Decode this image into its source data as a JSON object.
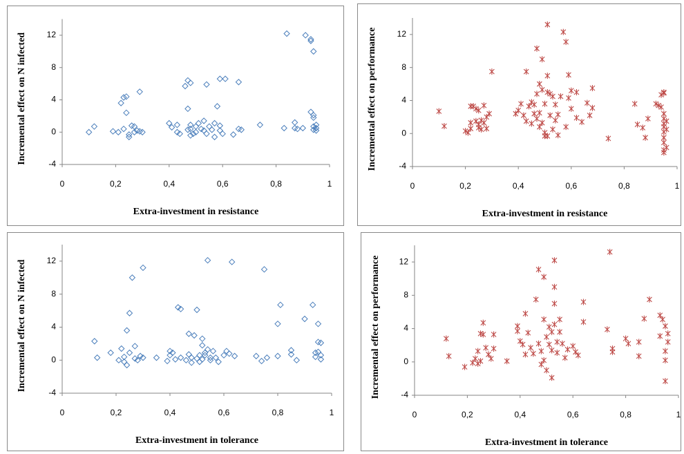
{
  "chart_data": [
    {
      "type": "scatter",
      "xlabel": "Extra-investment in resistance",
      "ylabel": "Incremental effect on N infected",
      "color": "#4a7ebb",
      "marker": "diamond",
      "xlim": [
        0,
        1
      ],
      "ylim": [
        -4,
        14
      ],
      "xticks": [
        0,
        {
          "value": 0.2,
          "label": "0,2"
        },
        {
          "value": 0.4,
          "label": "0,4"
        },
        {
          "value": 0.6,
          "label": "0,6"
        },
        {
          "value": 0.8,
          "label": "0,8"
        },
        1
      ],
      "yticks": [
        -4,
        0,
        4,
        8,
        12
      ],
      "x": [
        0.1,
        0.12,
        0.19,
        0.21,
        0.22,
        0.23,
        0.24,
        0.24,
        0.23,
        0.26,
        0.25,
        0.25,
        0.27,
        0.28,
        0.29,
        0.29,
        0.27,
        0.3,
        0.4,
        0.41,
        0.43,
        0.43,
        0.44,
        0.46,
        0.47,
        0.47,
        0.47,
        0.48,
        0.48,
        0.48,
        0.48,
        0.49,
        0.5,
        0.5,
        0.51,
        0.52,
        0.53,
        0.53,
        0.54,
        0.54,
        0.55,
        0.56,
        0.57,
        0.57,
        0.59,
        0.58,
        0.59,
        0.6,
        0.59,
        0.61,
        0.66,
        0.64,
        0.66,
        0.67,
        0.74,
        0.83,
        0.84,
        0.91,
        0.93,
        0.93,
        0.94,
        0.87,
        0.87,
        0.88,
        0.9,
        0.93,
        0.94,
        0.94,
        0.94,
        0.94,
        0.95,
        0.95,
        0.95
      ],
      "values": [
        0,
        0.7,
        0.1,
        0,
        3.6,
        4.3,
        2.4,
        4.4,
        0.4,
        0.8,
        -0.3,
        -0.6,
        0.7,
        0.2,
        0.1,
        5.0,
        0,
        0,
        1.1,
        0.6,
        0,
        0.9,
        -0.2,
        5.7,
        0.3,
        2.9,
        6.4,
        6.1,
        0.9,
        0.4,
        -0.4,
        -0.2,
        0.7,
        0,
        1.1,
        0.4,
        0.2,
        1.4,
        -0.2,
        5.9,
        0.7,
        0.3,
        -0.6,
        1.1,
        0.2,
        3.2,
        0.8,
        -0.2,
        6.6,
        6.6,
        6.2,
        -0.3,
        0.4,
        0.3,
        0.9,
        0.5,
        12.2,
        12.0,
        11.5,
        11.3,
        10.0,
        0.5,
        1.2,
        0.4,
        0.5,
        2.5,
        2.1,
        1.8,
        0.7,
        0.3,
        0.9,
        0.2,
        0.5
      ]
    },
    {
      "type": "scatter",
      "xlabel": "Extra-investment in resistance",
      "ylabel": "Incremental effect on performance",
      "color": "#be4b48",
      "marker": "asterisk",
      "xlim": [
        0,
        1
      ],
      "ylim": [
        -4,
        14
      ],
      "xticks": [
        0,
        {
          "value": 0.2,
          "label": "0,2"
        },
        {
          "value": 0.4,
          "label": "0,4"
        },
        {
          "value": 0.6,
          "label": "0,6"
        },
        {
          "value": 0.8,
          "label": "0,8"
        },
        1
      ],
      "yticks": [
        -4,
        0,
        4,
        8,
        12
      ],
      "x": [
        0.1,
        0.12,
        0.2,
        0.21,
        0.22,
        0.22,
        0.23,
        0.24,
        0.24,
        0.25,
        0.25,
        0.26,
        0.26,
        0.27,
        0.27,
        0.28,
        0.28,
        0.29,
        0.3,
        0.25,
        0.22,
        0.39,
        0.4,
        0.41,
        0.42,
        0.43,
        0.43,
        0.44,
        0.45,
        0.45,
        0.46,
        0.46,
        0.47,
        0.47,
        0.47,
        0.48,
        0.48,
        0.48,
        0.49,
        0.49,
        0.49,
        0.5,
        0.5,
        0.5,
        0.51,
        0.51,
        0.51,
        0.51,
        0.52,
        0.52,
        0.53,
        0.53,
        0.54,
        0.54,
        0.55,
        0.55,
        0.56,
        0.57,
        0.58,
        0.58,
        0.59,
        0.59,
        0.6,
        0.6,
        0.62,
        0.62,
        0.64,
        0.66,
        0.67,
        0.68,
        0.68,
        0.74,
        0.84,
        0.85,
        0.87,
        0.88,
        0.89,
        0.92,
        0.93,
        0.94,
        0.95,
        0.95,
        0.95,
        0.95,
        0.95,
        0.95,
        0.95,
        0.95,
        0.95,
        0.95,
        0.95,
        0.94,
        0.96,
        0.96,
        0.96
      ],
      "values": [
        2.7,
        0.9,
        0.3,
        0.1,
        0.6,
        3.3,
        3.3,
        1.5,
        3,
        2.8,
        0.7,
        0.5,
        1.6,
        1.3,
        3.4,
        2,
        0.6,
        2.4,
        7.5,
        1.1,
        1.3,
        2.4,
        2.8,
        3.6,
        2.2,
        7.5,
        1.5,
        3.3,
        3.8,
        1.2,
        2.4,
        3.5,
        10.3,
        1.8,
        4.8,
        6,
        2.5,
        0.8,
        9,
        5.3,
        1.3,
        0.1,
        -0.3,
        3.6,
        13.2,
        -0.3,
        5,
        7,
        2.2,
        4.8,
        0.5,
        4.5,
        3.5,
        1.6,
        -0.2,
        2.3,
        4.5,
        12.3,
        11.1,
        0.8,
        7.1,
        4.3,
        5.2,
        3,
        1.9,
        5,
        1.4,
        3.7,
        2.2,
        3.1,
        5.5,
        -0.6,
        3.6,
        1.1,
        0.7,
        -0.5,
        1.8,
        3.6,
        3.4,
        4.7,
        4.9,
        5,
        2.4,
        1.8,
        1.2,
        0.8,
        0.2,
        -0.5,
        -1.1,
        -2,
        -2.3,
        3.2,
        -1.7,
        0.5,
        1.5
      ]
    },
    {
      "type": "scatter",
      "xlabel": "Extra-investment in tolerance",
      "ylabel": "Incremental effect on N infected",
      "color": "#4a7ebb",
      "marker": "diamond",
      "xlim": [
        0,
        1
      ],
      "ylim": [
        -4,
        14
      ],
      "xticks": [
        0,
        {
          "value": 0.2,
          "label": "0,2"
        },
        {
          "value": 0.4,
          "label": "0,4"
        },
        {
          "value": 0.6,
          "label": "0,6"
        },
        {
          "value": 0.8,
          "label": "0,8"
        },
        1
      ],
      "yticks": [
        -4,
        0,
        4,
        8,
        12
      ],
      "x": [
        0.12,
        0.13,
        0.18,
        0.21,
        0.22,
        0.23,
        0.23,
        0.24,
        0.24,
        0.25,
        0.25,
        0.26,
        0.27,
        0.27,
        0.28,
        0.29,
        0.3,
        0.3,
        0.35,
        0.39,
        0.4,
        0.4,
        0.41,
        0.42,
        0.43,
        0.44,
        0.44,
        0.46,
        0.47,
        0.47,
        0.48,
        0.48,
        0.49,
        0.5,
        0.5,
        0.51,
        0.51,
        0.52,
        0.52,
        0.52,
        0.53,
        0.53,
        0.54,
        0.54,
        0.55,
        0.55,
        0.56,
        0.57,
        0.58,
        0.6,
        0.61,
        0.62,
        0.63,
        0.64,
        0.72,
        0.74,
        0.75,
        0.76,
        0.8,
        0.8,
        0.81,
        0.85,
        0.85,
        0.87,
        0.9,
        0.93,
        0.94,
        0.94,
        0.95,
        0.95,
        0.95,
        0.96,
        0.96,
        0.96
      ],
      "values": [
        2.3,
        0.3,
        0.9,
        0,
        1.4,
        -0.2,
        0.4,
        -0.6,
        3.6,
        0.9,
        5.7,
        10,
        1.7,
        0.2,
        0,
        0.5,
        11.2,
        0.3,
        0.3,
        -0.1,
        0.6,
        1.1,
        0.9,
        0.1,
        6.4,
        6.2,
        0.3,
        0,
        3.2,
        0.7,
        0.3,
        -0.3,
        3,
        6.1,
        0.2,
        -0.2,
        0.6,
        1.8,
        2.6,
        0.1,
        0.9,
        0.6,
        12.1,
        1.3,
        0.3,
        0,
        1.1,
        0.3,
        -0.2,
        0.6,
        1.1,
        0.8,
        11.9,
        0.5,
        0.5,
        -0.1,
        11,
        0.3,
        4.4,
        0.5,
        6.7,
        0.7,
        1.2,
        0,
        5,
        6.7,
        0.4,
        0.9,
        4.4,
        2.2,
        1,
        0.1,
        0.6,
        2.1
      ]
    },
    {
      "type": "scatter",
      "xlabel": "Extra-investment in tolerance",
      "ylabel": "Incremental effect on performance",
      "color": "#be4b48",
      "marker": "asterisk",
      "xlim": [
        0,
        1
      ],
      "ylim": [
        -4,
        14
      ],
      "xticks": [
        0,
        {
          "value": 0.2,
          "label": "0,2"
        },
        {
          "value": 0.4,
          "label": "0,4"
        },
        {
          "value": 0.6,
          "label": "0,6"
        },
        {
          "value": 0.8,
          "label": "0,8"
        },
        1
      ],
      "yticks": [
        -4,
        0,
        4,
        8,
        12
      ],
      "x": [
        0.12,
        0.13,
        0.19,
        0.22,
        0.23,
        0.24,
        0.24,
        0.25,
        0.25,
        0.26,
        0.26,
        0.27,
        0.28,
        0.29,
        0.3,
        0.3,
        0.35,
        0.39,
        0.39,
        0.4,
        0.41,
        0.42,
        0.42,
        0.43,
        0.44,
        0.45,
        0.46,
        0.47,
        0.47,
        0.48,
        0.48,
        0.49,
        0.49,
        0.49,
        0.5,
        0.5,
        0.51,
        0.51,
        0.52,
        0.52,
        0.52,
        0.53,
        0.53,
        0.53,
        0.53,
        0.54,
        0.54,
        0.55,
        0.55,
        0.56,
        0.57,
        0.58,
        0.6,
        0.61,
        0.62,
        0.64,
        0.64,
        0.73,
        0.74,
        0.75,
        0.75,
        0.8,
        0.81,
        0.85,
        0.85,
        0.87,
        0.89,
        0.93,
        0.93,
        0.94,
        0.95,
        0.95,
        0.95,
        0.95,
        0.96,
        0.96
      ],
      "values": [
        2.8,
        0.7,
        -0.6,
        -0.1,
        0.4,
        -0.2,
        1.3,
        3.4,
        0.1,
        3.3,
        4.7,
        1.7,
        0.9,
        0.4,
        3.3,
        1.6,
        0.1,
        4.3,
        3.7,
        2.5,
        2.1,
        5.8,
        0.9,
        3.5,
        1.7,
        1,
        7.5,
        11.1,
        2.2,
        1.3,
        -0.3,
        10.2,
        5.1,
        0.2,
        -1,
        3,
        2.1,
        4.2,
        -1.9,
        1.4,
        3.6,
        12.2,
        9,
        7,
        4.5,
        2.4,
        1.1,
        3.6,
        5.1,
        2.2,
        0.5,
        1.5,
        1.9,
        1.2,
        0.8,
        4.8,
        7.2,
        3.9,
        13.2,
        1.6,
        1.2,
        2.8,
        2.2,
        2.4,
        0.7,
        5.2,
        7.5,
        5.6,
        3.1,
        5.1,
        4.3,
        1.3,
        0.2,
        -2.3,
        3.4,
        2.4
      ]
    }
  ]
}
